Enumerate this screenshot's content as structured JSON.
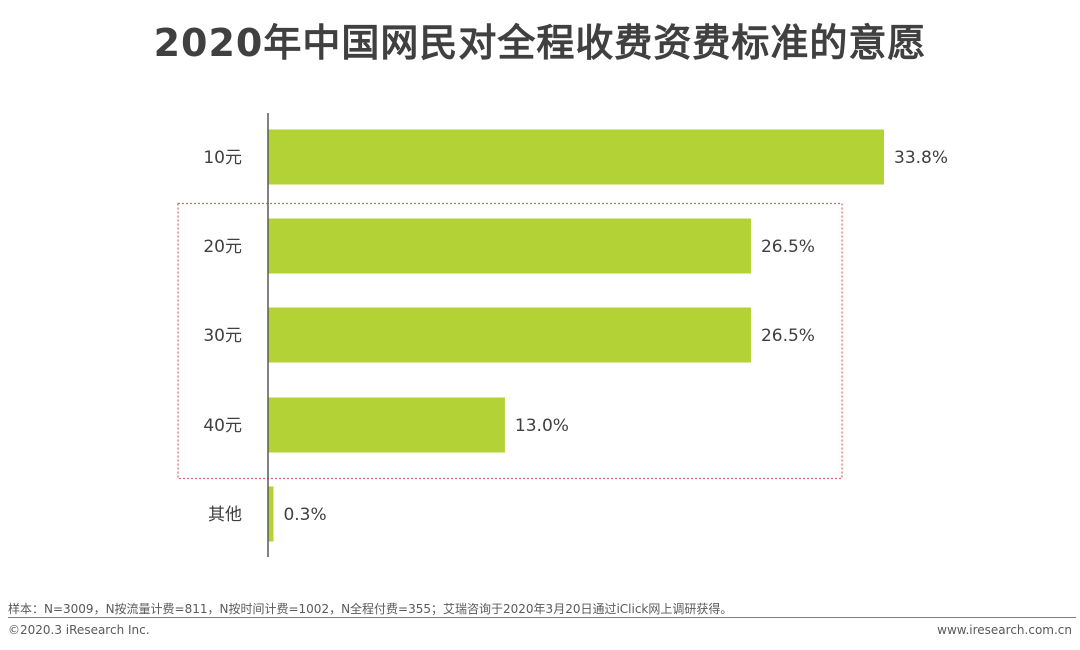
{
  "chart_data": {
    "type": "bar",
    "orientation": "horizontal",
    "title": "2020年中国网民对全程收费资费标准的意愿",
    "categories": [
      "10元",
      "20元",
      "30元",
      "40元",
      "其他"
    ],
    "values": [
      33.8,
      26.5,
      26.5,
      13.0,
      0.3
    ],
    "value_labels": [
      "33.8%",
      "26.5%",
      "26.5%",
      "13.0%",
      "0.3%"
    ],
    "unit": "%",
    "xlim": [
      0,
      33.8
    ],
    "bar_color": "#b2d235",
    "highlight": {
      "categories": [
        "20元",
        "30元",
        "40元"
      ],
      "style": "dotted-box",
      "color": "#e06666"
    },
    "grid": false,
    "legend": "none"
  },
  "footer": {
    "note": "样本：N=3009，N按流量计费=811，N按时间计费=1002，N全程付费=355；艾瑞咨询于2020年3月20日通过iClick网上调研获得。",
    "copyright": "©2020.3 iResearch Inc.",
    "website": "www.iresearch.com.cn"
  }
}
